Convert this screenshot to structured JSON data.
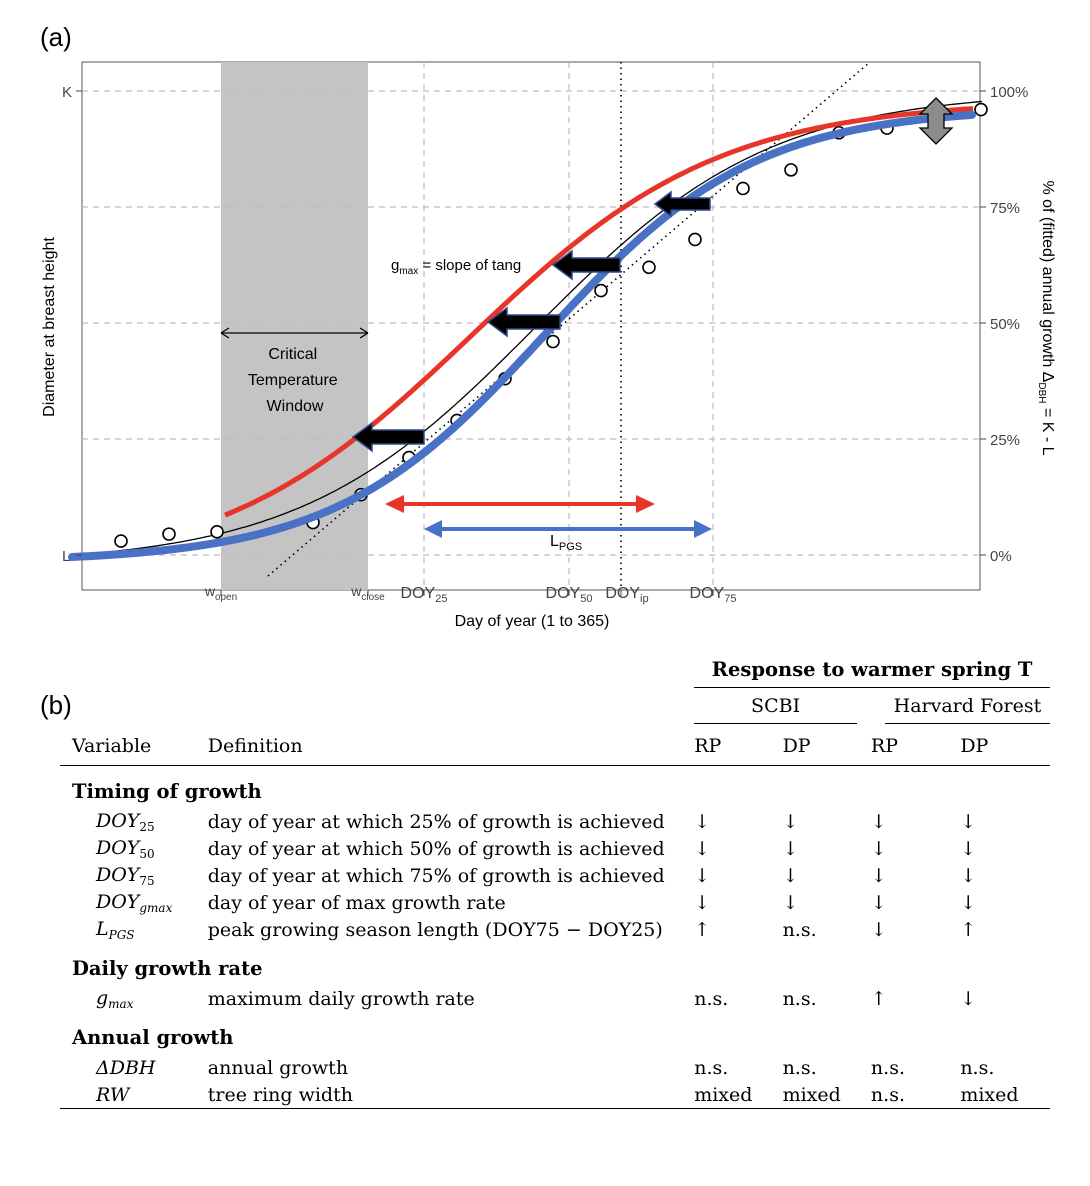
{
  "panel_a": {
    "label": "(a)",
    "y_left_label": "Diameter at breast height",
    "y_right_label": "% of (fitted) annual growth Δ",
    "y_right_label_sub": "DBH",
    "y_right_label_tail": " = K - L",
    "x_label": "Day of year (1 to 365)",
    "left_ticks": [
      "K",
      "L"
    ],
    "right_ticks": [
      "100%",
      "75%",
      "50%",
      "25%",
      "0%"
    ],
    "x_tick_labels": [
      {
        "main": "w",
        "sub": "open"
      },
      {
        "main": "w",
        "sub": "close"
      },
      {
        "main": "DOY",
        "sub": "25"
      },
      {
        "main": "DOY",
        "sub": "50"
      },
      {
        "main": "DOY",
        "sub": "ip"
      },
      {
        "main": "DOY",
        "sub": "75"
      }
    ],
    "window_label_lines": [
      "Critical",
      "Temperature",
      "Window"
    ],
    "gmax_label_main": "g",
    "gmax_label_sub": "max",
    "gmax_label_tail": " = slope of tang",
    "lpgs_label_main": "L",
    "lpgs_label_sub": "PGS",
    "colors": {
      "red": "#e8352a",
      "blue": "#4a72c4",
      "window": "#c4c4c4",
      "grid": "#bdbdbd",
      "arrow_fill": "#000000",
      "arrow_edge": "#2f4a8a",
      "double_arrow": "#8c8c8c"
    }
  },
  "chart_data": {
    "type": "line",
    "xlabel": "Day of year (1 to 365)",
    "ylabel": "% of (fitted) annual growth ΔDBH = K - L",
    "ylim": [
      0,
      100
    ],
    "series": [],
    "observations_pct": [
      3,
      4.5,
      5,
      13,
      21,
      29,
      38,
      46,
      57,
      62,
      68,
      79,
      83,
      91,
      92,
      96
    ]
  },
  "panel_b": {
    "label": "(b)",
    "header": {
      "response": "Response to warmer spring T",
      "sites": [
        "SCBI",
        "Harvard Forest"
      ],
      "col_variable": "Variable",
      "col_definition": "Definition",
      "cols": [
        "RP",
        "DP",
        "RP",
        "DP"
      ]
    },
    "groups": [
      {
        "title": "Timing of growth",
        "rows": [
          {
            "var_main": "DOY",
            "var_sub": "25",
            "definition": "day of year at which 25% of growth is achieved",
            "values": [
              "↓",
              "↓",
              "↓",
              "↓"
            ]
          },
          {
            "var_main": "DOY",
            "var_sub": "50",
            "definition": "day of year at which 50% of growth is achieved",
            "values": [
              "↓",
              "↓",
              "↓",
              "↓"
            ]
          },
          {
            "var_main": "DOY",
            "var_sub": "75",
            "definition": "day of year at which 75% of growth is achieved",
            "values": [
              "↓",
              "↓",
              "↓",
              "↓"
            ]
          },
          {
            "var_main": "DOY",
            "var_sub": "gmax",
            "definition": "day of year of max growth rate",
            "values": [
              "↓",
              "↓",
              "↓",
              "↓"
            ]
          },
          {
            "var_main": "L",
            "var_sub": "PGS",
            "definition": "peak growing season length (DOY75 − DOY25)",
            "values": [
              "↑",
              "n.s.",
              "↓",
              "↑"
            ]
          }
        ]
      },
      {
        "title": "Daily growth rate",
        "rows": [
          {
            "var_main": "g",
            "var_sub": "max",
            "definition": "maximum daily growth rate",
            "values": [
              "n.s.",
              "n.s.",
              "↑",
              "↓"
            ]
          }
        ]
      },
      {
        "title": "Annual growth",
        "rows": [
          {
            "var_main": "ΔDBH",
            "var_sub": "",
            "definition": "annual growth",
            "values": [
              "n.s.",
              "n.s.",
              "n.s.",
              "n.s."
            ]
          },
          {
            "var_main": "RW",
            "var_sub": "",
            "definition": "tree ring width",
            "values": [
              "mixed",
              "mixed",
              "n.s.",
              "mixed"
            ]
          }
        ]
      }
    ]
  }
}
